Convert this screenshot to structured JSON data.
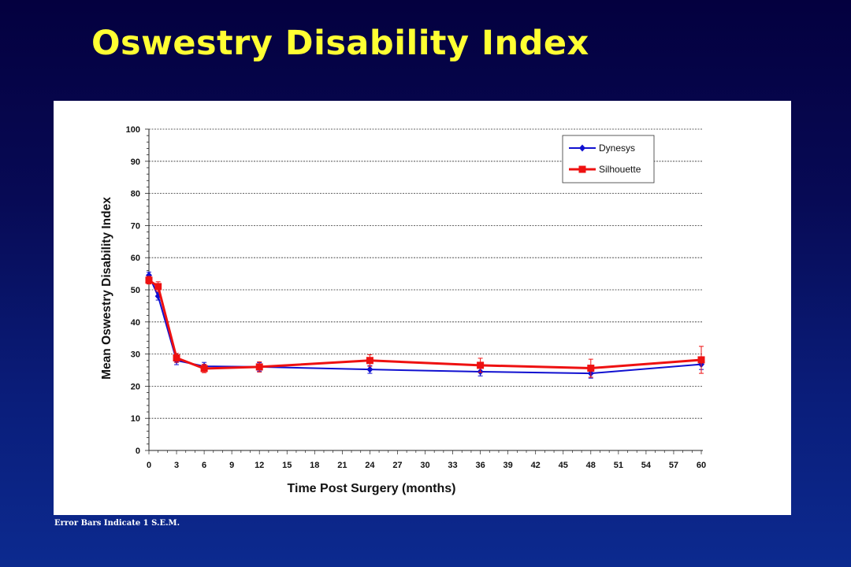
{
  "slide": {
    "title": "Oswestry Disability Index",
    "footnote": "Error Bars Indicate 1 S.E.M."
  },
  "colors": {
    "background_top": "#04003f",
    "background_bottom": "#0c2a8f",
    "title": "#ffff33",
    "dynesys": "#1010d0",
    "silhouette": "#ee1111"
  },
  "chart_data": {
    "type": "line",
    "title": "",
    "xlabel": "Time Post Surgery (months)",
    "ylabel": "Mean Oswestry Disability Index",
    "xlim": [
      0,
      60
    ],
    "ylim": [
      0,
      100
    ],
    "x_ticks": [
      0,
      3,
      6,
      9,
      12,
      15,
      18,
      21,
      24,
      27,
      30,
      33,
      36,
      39,
      42,
      45,
      48,
      51,
      54,
      57,
      60
    ],
    "y_ticks": [
      0,
      10,
      20,
      30,
      40,
      50,
      60,
      70,
      80,
      90,
      100
    ],
    "y_minor_step": 2,
    "grid": "horizontal dashed",
    "legend_position": "top-right",
    "series": [
      {
        "name": "Dynesys",
        "marker": "diamond",
        "color": "#1010d0",
        "x": [
          0,
          1,
          3,
          6,
          12,
          24,
          36,
          48,
          60
        ],
        "y": [
          54.5,
          48,
          28,
          26.2,
          26,
          25.2,
          24.5,
          24,
          26.8
        ],
        "err": [
          1.0,
          1.2,
          1.3,
          1.2,
          1.3,
          1.2,
          1.3,
          1.5,
          1.6
        ]
      },
      {
        "name": "Silhouette",
        "marker": "square",
        "color": "#ee1111",
        "x": [
          0,
          1,
          3,
          6,
          12,
          24,
          36,
          48,
          60
        ],
        "y": [
          53,
          51,
          28.8,
          25.5,
          26,
          28,
          26.5,
          25.6,
          28.2
        ],
        "err": [
          1.2,
          1.5,
          1.4,
          1.3,
          1.6,
          1.8,
          2.2,
          2.8,
          4.2
        ]
      }
    ]
  }
}
